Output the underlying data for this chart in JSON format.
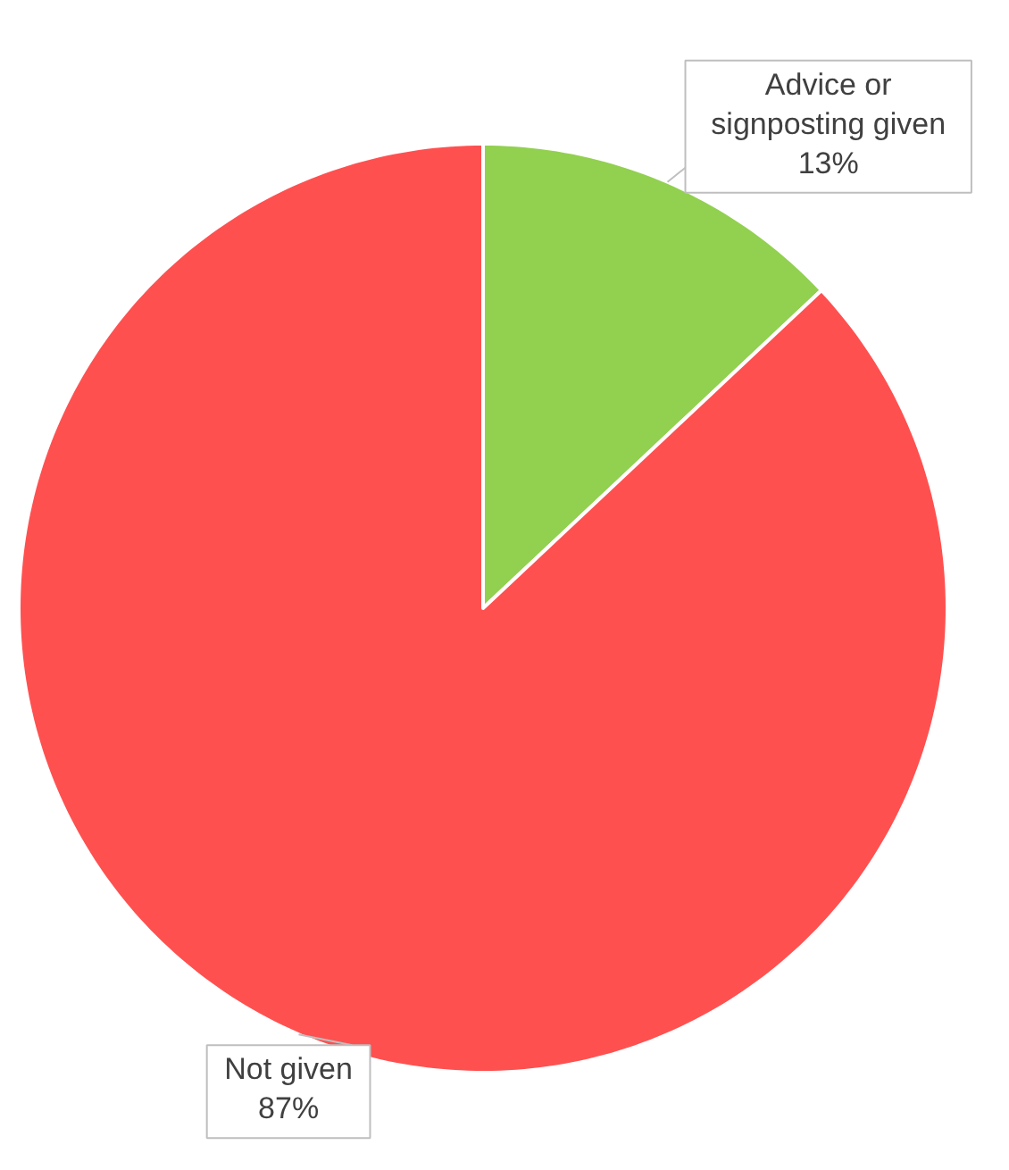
{
  "chart_data": {
    "type": "pie",
    "categories": [
      "Advice or signposting given",
      "Not given"
    ],
    "values": [
      13,
      87
    ],
    "value_labels": [
      "13%",
      "87%"
    ],
    "colors": [
      "#92d050",
      "#ff5050"
    ]
  }
}
